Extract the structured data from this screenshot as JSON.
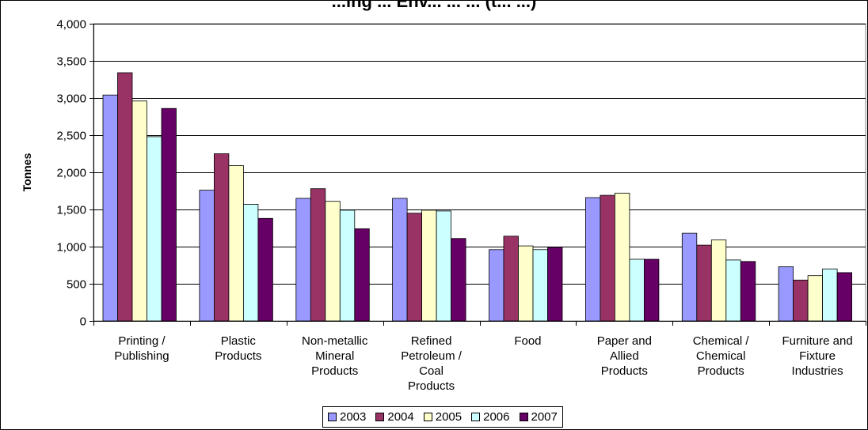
{
  "chart_data": {
    "type": "bar",
    "title": "...ing ... Env... ... ... (t... ...)",
    "ylabel": "Tonnes",
    "xlabel": "",
    "ylim": [
      0,
      4000
    ],
    "yticks": [
      "0",
      "500",
      "1,000",
      "1,500",
      "2,000",
      "2,500",
      "3,000",
      "3,500",
      "4,000"
    ],
    "grid": true,
    "legend_position": "bottom",
    "categories": [
      [
        "Printing /",
        "Publishing"
      ],
      [
        "Plastic",
        "Products"
      ],
      [
        "Non-metallic",
        "Mineral",
        "Products"
      ],
      [
        "Refined",
        "Petroleum /",
        "Coal",
        "Products"
      ],
      [
        "Food"
      ],
      [
        "Paper and",
        "Allied",
        "Products"
      ],
      [
        "Chemical /",
        "Chemical",
        "Products"
      ],
      [
        "Furniture and",
        "Fixture",
        "Industries"
      ]
    ],
    "series": [
      {
        "name": "2003",
        "color": "#9999ff",
        "values": [
          3040,
          1760,
          1650,
          1650,
          960,
          1660,
          1180,
          730
        ]
      },
      {
        "name": "2004",
        "color": "#993366",
        "values": [
          3340,
          2250,
          1780,
          1450,
          1140,
          1690,
          1020,
          550
        ]
      },
      {
        "name": "2005",
        "color": "#ffffcc",
        "values": [
          2960,
          2090,
          1610,
          1490,
          1010,
          1720,
          1090,
          610
        ]
      },
      {
        "name": "2006",
        "color": "#ccffff",
        "values": [
          2480,
          1570,
          1490,
          1480,
          960,
          830,
          820,
          700
        ]
      },
      {
        "name": "2007",
        "color": "#660066",
        "values": [
          2860,
          1380,
          1240,
          1110,
          990,
          830,
          800,
          650
        ]
      }
    ]
  }
}
